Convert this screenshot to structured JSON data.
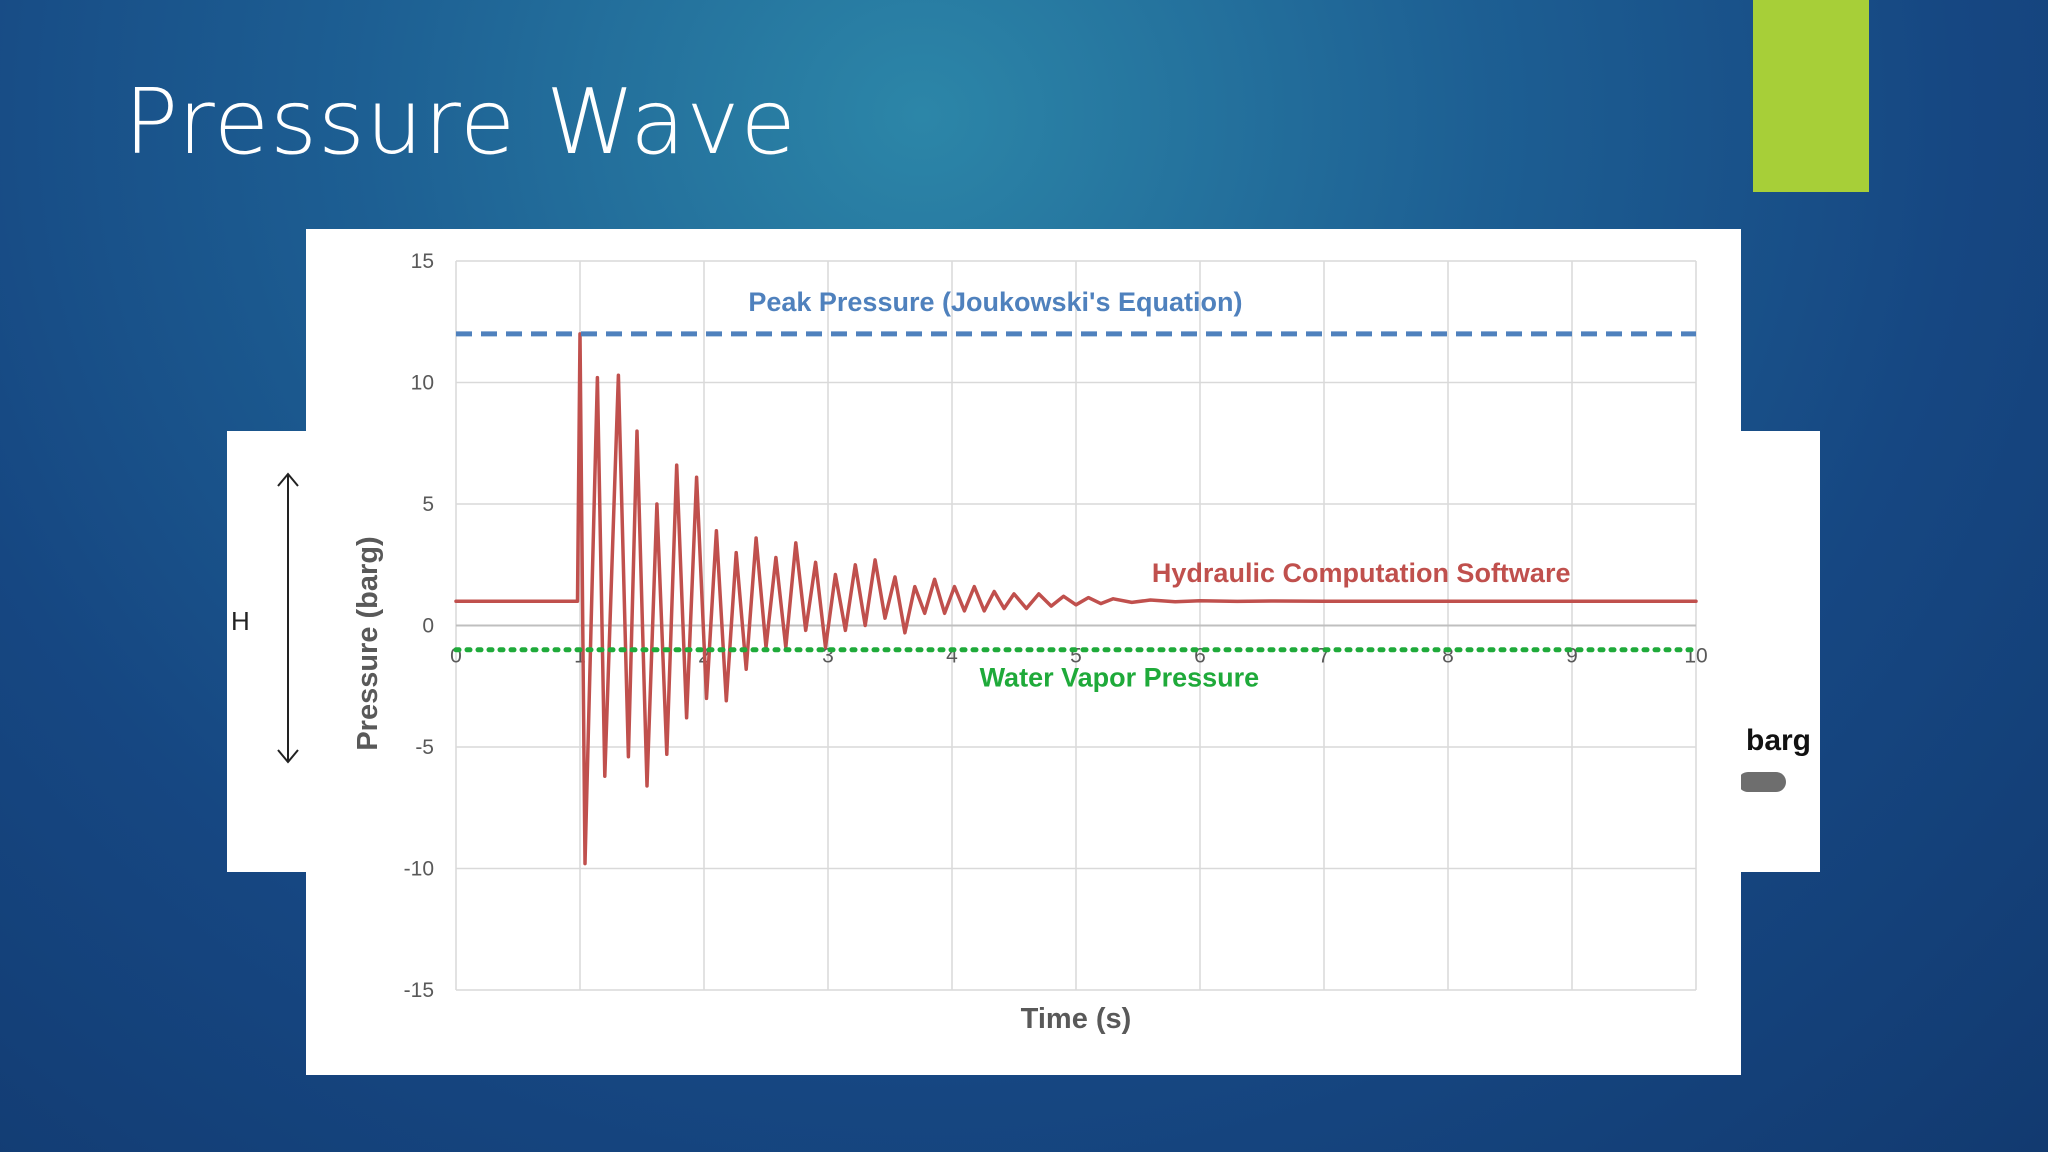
{
  "slide": {
    "title": "Pressure Wave",
    "h_label": "H",
    "barg_label": "barg",
    "accent_color": "#a7cf38"
  },
  "chart_data": {
    "type": "line",
    "title": "",
    "xlabel": "Time (s)",
    "ylabel": "Pressure (barg)",
    "xlim": [
      0,
      10
    ],
    "ylim": [
      -15,
      15
    ],
    "x_ticks": [
      0,
      1,
      2,
      3,
      4,
      5,
      6,
      7,
      8,
      9,
      10
    ],
    "y_ticks": [
      15,
      10,
      5,
      0,
      -5,
      -10,
      -15
    ],
    "grid": true,
    "series": [
      {
        "name": "Hydraulic Computation Software",
        "color": "#c0504d",
        "style": "solid",
        "x": [
          0,
          0.98,
          1.0,
          1.04,
          1.14,
          1.2,
          1.31,
          1.39,
          1.46,
          1.54,
          1.62,
          1.7,
          1.78,
          1.86,
          1.94,
          2.02,
          2.1,
          2.18,
          2.26,
          2.34,
          2.42,
          2.5,
          2.58,
          2.66,
          2.74,
          2.82,
          2.9,
          2.98,
          3.06,
          3.14,
          3.22,
          3.3,
          3.38,
          3.46,
          3.54,
          3.62,
          3.7,
          3.78,
          3.86,
          3.94,
          4.02,
          4.1,
          4.18,
          4.26,
          4.34,
          4.42,
          4.5,
          4.6,
          4.7,
          4.8,
          4.9,
          5.0,
          5.1,
          5.2,
          5.3,
          5.45,
          5.6,
          5.8,
          6.0,
          6.3,
          6.6,
          7.0,
          10
        ],
        "y": [
          1,
          1,
          12,
          -9.8,
          10.2,
          -6.2,
          10.3,
          -5.4,
          8,
          -6.6,
          5,
          -5.3,
          6.6,
          -3.8,
          6.1,
          -3,
          3.9,
          -3.1,
          3,
          -1.8,
          3.6,
          -0.9,
          2.8,
          -0.9,
          3.4,
          -0.2,
          2.6,
          -0.9,
          2.1,
          -0.2,
          2.5,
          0,
          2.7,
          0.3,
          2,
          -0.3,
          1.6,
          0.5,
          1.9,
          0.5,
          1.6,
          0.6,
          1.6,
          0.6,
          1.4,
          0.7,
          1.3,
          0.7,
          1.3,
          0.8,
          1.2,
          0.85,
          1.15,
          0.9,
          1.1,
          0.95,
          1.05,
          0.98,
          1.02,
          0.99,
          1.01,
          1,
          1
        ]
      },
      {
        "name": "Peak Pressure (Joukowski's Equation)",
        "color": "#4f81bd",
        "style": "dashed",
        "x": [
          0,
          10
        ],
        "y": [
          12,
          12
        ]
      },
      {
        "name": "Water Vapor Pressure",
        "color": "#1faa3a",
        "style": "dotted",
        "x": [
          0,
          10
        ],
        "y": [
          -1,
          -1
        ]
      }
    ],
    "annotations": [
      {
        "text": "Peak Pressure (Joukowski's Equation)",
        "x": 4.35,
        "y": 12.95,
        "color": "#4f81bd"
      },
      {
        "text": "Hydraulic Computation Software",
        "x": 7.3,
        "y": 1.8,
        "color": "#c0504d"
      },
      {
        "text": "Water Vapor Pressure",
        "x": 5.35,
        "y": -2.5,
        "color": "#1faa3a"
      }
    ]
  }
}
